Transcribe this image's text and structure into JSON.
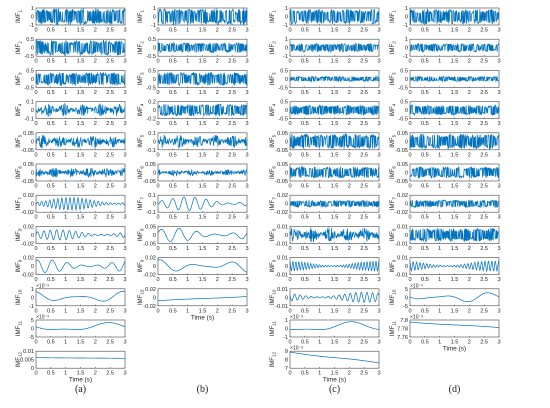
{
  "chart_data": [
    {
      "type": "line",
      "panel_label": "(a)",
      "xlabel": "Time (s)",
      "xlim": [
        0,
        3
      ],
      "x_ticks": [
        "0",
        "0.5",
        "1",
        "1.5",
        "2",
        "2.5",
        "3"
      ],
      "series": [
        {
          "name": "IMF1",
          "ylim": [
            -1,
            1
          ],
          "y_ticks": [
            "1",
            "0",
            "-1"
          ],
          "pattern": "dense",
          "amplitude": 1.0
        },
        {
          "name": "IMF2",
          "ylim": [
            -0.5,
            0.5
          ],
          "y_ticks": [
            "0.5",
            "0",
            "-0.5"
          ],
          "pattern": "dense",
          "amplitude": 0.45
        },
        {
          "name": "IMF3",
          "ylim": [
            -0.5,
            0.5
          ],
          "y_ticks": [
            "0.5",
            "0",
            "-0.5"
          ],
          "pattern": "dense",
          "amplitude": 0.4
        },
        {
          "name": "IMF4",
          "ylim": [
            -0.1,
            0.1
          ],
          "y_ticks": [
            "0.1",
            "0",
            "-0.1"
          ],
          "pattern": "bursty",
          "amplitude": 0.08
        },
        {
          "name": "IMF5",
          "ylim": [
            -0.05,
            0.05
          ],
          "y_ticks": [
            "0.05",
            "0",
            "-0.05"
          ],
          "pattern": "bursty",
          "amplitude": 0.04
        },
        {
          "name": "IMF6",
          "ylim": [
            -0.05,
            0.05
          ],
          "y_ticks": [
            "0.05",
            "0",
            "-0.05"
          ],
          "pattern": "bursty",
          "amplitude": 0.03
        },
        {
          "name": "IMF7",
          "ylim": [
            -0.02,
            0.02
          ],
          "y_ticks": [
            "0.02",
            "0",
            "-0.02"
          ],
          "pattern": "wave",
          "amplitude": 0.015,
          "cycles": 22
        },
        {
          "name": "IMF8",
          "ylim": [
            -0.02,
            0.02
          ],
          "y_ticks": [
            "0.02",
            "0",
            "-0.02"
          ],
          "pattern": "wave",
          "amplitude": 0.012,
          "cycles": 14
        },
        {
          "name": "IMF9",
          "ylim": [
            -0.02,
            0.02
          ],
          "y_ticks": [
            "0.02",
            "0",
            "-0.02"
          ],
          "pattern": "wave",
          "amplitude": 0.015,
          "cycles": 6
        },
        {
          "name": "IMF10",
          "ylim": [
            -1,
            1
          ],
          "y_ticks": [
            "1",
            "0",
            "-1"
          ],
          "exponent": "×10⁻³",
          "pattern": "wave",
          "amplitude": 0.7,
          "cycles": 2
        },
        {
          "name": "IMF11",
          "ylim": [
            -5,
            5
          ],
          "y_ticks": [
            "5",
            "0",
            "-5"
          ],
          "exponent": "×10⁻³",
          "pattern": "wave",
          "amplitude": 3.5,
          "cycles": 1
        },
        {
          "name": "IMF12",
          "ylim": [
            0,
            0.01
          ],
          "y_ticks": [
            "0.01",
            "0.005",
            "0"
          ],
          "pattern": "trend",
          "start": 0.0062,
          "end": 0.0058
        }
      ]
    },
    {
      "type": "line",
      "panel_label": "(b)",
      "xlabel": "Time (s)",
      "xlim": [
        0,
        3
      ],
      "x_ticks": [
        "0",
        "0.5",
        "1",
        "1.5",
        "2",
        "2.5",
        "3"
      ],
      "series": [
        {
          "name": "IMF1",
          "ylim": [
            -1,
            1
          ],
          "y_ticks": [
            "1",
            "0",
            "-1"
          ],
          "pattern": "dense",
          "amplitude": 1.0
        },
        {
          "name": "IMF2",
          "ylim": [
            -0.5,
            0.5
          ],
          "y_ticks": [
            "0.5",
            "0",
            "-0.5"
          ],
          "pattern": "dense",
          "amplitude": 0.3
        },
        {
          "name": "IMF3",
          "ylim": [
            -0.5,
            0.5
          ],
          "y_ticks": [
            "0.5",
            "0",
            "-0.5"
          ],
          "pattern": "dense",
          "amplitude": 0.4
        },
        {
          "name": "IMF4",
          "ylim": [
            -0.2,
            0.2
          ],
          "y_ticks": [
            "0.2",
            "0",
            "-0.2"
          ],
          "pattern": "dense",
          "amplitude": 0.15
        },
        {
          "name": "IMF5",
          "ylim": [
            -0.1,
            0.1
          ],
          "y_ticks": [
            "0.1",
            "0",
            "-0.1"
          ],
          "pattern": "bursty",
          "amplitude": 0.08
        },
        {
          "name": "IMF6",
          "ylim": [
            -0.05,
            0.05
          ],
          "y_ticks": [
            "0.05",
            "0",
            "-0.05"
          ],
          "pattern": "bursty",
          "amplitude": 0.02
        },
        {
          "name": "IMF7",
          "ylim": [
            -0.1,
            0.1
          ],
          "y_ticks": [
            "0.1",
            "0",
            "-0.1"
          ],
          "pattern": "wave",
          "amplitude": 0.08,
          "cycles": 8
        },
        {
          "name": "IMF8",
          "ylim": [
            -0.05,
            0.05
          ],
          "y_ticks": [
            "0.05",
            "0",
            "-0.05"
          ],
          "pattern": "wave",
          "amplitude": 0.04,
          "cycles": 5
        },
        {
          "name": "IMF9",
          "ylim": [
            -0.02,
            0.02
          ],
          "y_ticks": [
            "0.02",
            "0",
            "-0.02"
          ],
          "pattern": "wave",
          "amplitude": 0.015,
          "cycles": 2.5
        },
        {
          "name": "IMF10",
          "ylim": [
            -0.02,
            0.02
          ],
          "y_ticks": [
            "0.02",
            "0",
            "-0.02"
          ],
          "pattern": "trend",
          "start": -0.008,
          "end": 0.002
        }
      ]
    },
    {
      "type": "line",
      "panel_label": "(c)",
      "xlabel": "Time (s)",
      "xlim": [
        0,
        3
      ],
      "x_ticks": [
        "0",
        "0.5",
        "1",
        "1.5",
        "2",
        "2.5",
        "3"
      ],
      "series": [
        {
          "name": "IMF1",
          "ylim": [
            -1,
            1
          ],
          "y_ticks": [
            "1",
            "0",
            "-1"
          ],
          "pattern": "dense",
          "amplitude": 0.9
        },
        {
          "name": "IMF2",
          "ylim": [
            -1,
            1
          ],
          "y_ticks": [
            "1",
            "0",
            "-1"
          ],
          "pattern": "dense",
          "amplitude": 0.5
        },
        {
          "name": "IMF3",
          "ylim": [
            -0.5,
            0.5
          ],
          "y_ticks": [
            "0.5",
            "0",
            "-0.5"
          ],
          "pattern": "dense",
          "amplitude": 0.15
        },
        {
          "name": "IMF4",
          "ylim": [
            -0.5,
            0.5
          ],
          "y_ticks": [
            "0.5",
            "0",
            "-0.5"
          ],
          "pattern": "dense",
          "amplitude": 0.3
        },
        {
          "name": "IMF5",
          "ylim": [
            -0.05,
            0.05
          ],
          "y_ticks": [
            "0.05",
            "0",
            "-0.05"
          ],
          "pattern": "dense",
          "amplitude": 0.045
        },
        {
          "name": "IMF6",
          "ylim": [
            -0.05,
            0.05
          ],
          "y_ticks": [
            "0.05",
            "0",
            "-0.05"
          ],
          "pattern": "dense",
          "amplitude": 0.035
        },
        {
          "name": "IMF7",
          "ylim": [
            -0.02,
            0.02
          ],
          "y_ticks": [
            "0.02",
            "0",
            "-0.02"
          ],
          "pattern": "dense",
          "amplitude": 0.008
        },
        {
          "name": "IMF8",
          "ylim": [
            -0.01,
            0.01
          ],
          "y_ticks": [
            "0.01",
            "0",
            "-0.01"
          ],
          "pattern": "bursty",
          "amplitude": 0.009
        },
        {
          "name": "IMF9",
          "ylim": [
            -0.01,
            0.01
          ],
          "y_ticks": [
            "0.01",
            "0",
            "-0.01"
          ],
          "pattern": "wave",
          "amplitude": 0.006,
          "cycles": 30
        },
        {
          "name": "IMF10",
          "ylim": [
            -0.01,
            0.01
          ],
          "y_ticks": [
            "0.01",
            "0",
            "-0.01"
          ],
          "pattern": "wave",
          "amplitude": 0.006,
          "cycles": 16
        },
        {
          "name": "IMF11",
          "ylim": [
            -1,
            1
          ],
          "y_ticks": [
            "1",
            "0",
            "-1"
          ],
          "exponent": "×10⁻³",
          "pattern": "wave",
          "amplitude": 0.8,
          "cycles": 1
        },
        {
          "name": "IMF12",
          "ylim": [
            7,
            9
          ],
          "y_ticks": [
            "9",
            "8",
            "7"
          ],
          "exponent": "×10⁻³",
          "pattern": "trend",
          "start": 8.9,
          "end": 7.6
        }
      ]
    },
    {
      "type": "line",
      "panel_label": "(d)",
      "xlabel": "Time (s)",
      "xlim": [
        0,
        3
      ],
      "x_ticks": [
        "0",
        "0.5",
        "1",
        "1.5",
        "2",
        "2.5",
        "3"
      ],
      "series": [
        {
          "name": "IMF1",
          "ylim": [
            -1,
            1
          ],
          "y_ticks": [
            "1",
            "0",
            "-1"
          ],
          "pattern": "dense",
          "amplitude": 0.9
        },
        {
          "name": "IMF2",
          "ylim": [
            -1,
            1
          ],
          "y_ticks": [
            "1",
            "0",
            "-1"
          ],
          "pattern": "dense",
          "amplitude": 0.5
        },
        {
          "name": "IMF3",
          "ylim": [
            -0.5,
            0.5
          ],
          "y_ticks": [
            "0.5",
            "0",
            "-0.5"
          ],
          "pattern": "dense",
          "amplitude": 0.15
        },
        {
          "name": "IMF4",
          "ylim": [
            -0.5,
            0.5
          ],
          "y_ticks": [
            "0.5",
            "0",
            "-0.5"
          ],
          "pattern": "dense",
          "amplitude": 0.3
        },
        {
          "name": "IMF5",
          "ylim": [
            -0.05,
            0.05
          ],
          "y_ticks": [
            "0.05",
            "0",
            "-0.05"
          ],
          "pattern": "dense",
          "amplitude": 0.045
        },
        {
          "name": "IMF6",
          "ylim": [
            -0.05,
            0.05
          ],
          "y_ticks": [
            "0.05",
            "0",
            "-0.05"
          ],
          "pattern": "dense",
          "amplitude": 0.035
        },
        {
          "name": "IMF7",
          "ylim": [
            -0.02,
            0.02
          ],
          "y_ticks": [
            "0.02",
            "0",
            "-0.02"
          ],
          "pattern": "dense",
          "amplitude": 0.009
        },
        {
          "name": "IMF8",
          "ylim": [
            -0.01,
            0.01
          ],
          "y_ticks": [
            "0.01",
            "0",
            "-0.01"
          ],
          "pattern": "dense",
          "amplitude": 0.008
        },
        {
          "name": "IMF9",
          "ylim": [
            -0.01,
            0.01
          ],
          "y_ticks": [
            "0.01",
            "0",
            "-0.01"
          ],
          "pattern": "wave",
          "amplitude": 0.006,
          "cycles": 26
        },
        {
          "name": "IMF10",
          "ylim": [
            -5,
            5
          ],
          "y_ticks": [
            "5",
            "0",
            "-5"
          ],
          "exponent": "×10⁻³",
          "pattern": "wave",
          "amplitude": 3,
          "cycles": 2
        },
        {
          "name": "IMF11",
          "ylim": [
            7.76,
            7.8
          ],
          "y_ticks": [
            "7.8",
            "7.78",
            "7.76"
          ],
          "exponent": "×10⁻³",
          "pattern": "trend",
          "start": 7.795,
          "end": 7.782
        }
      ]
    }
  ]
}
